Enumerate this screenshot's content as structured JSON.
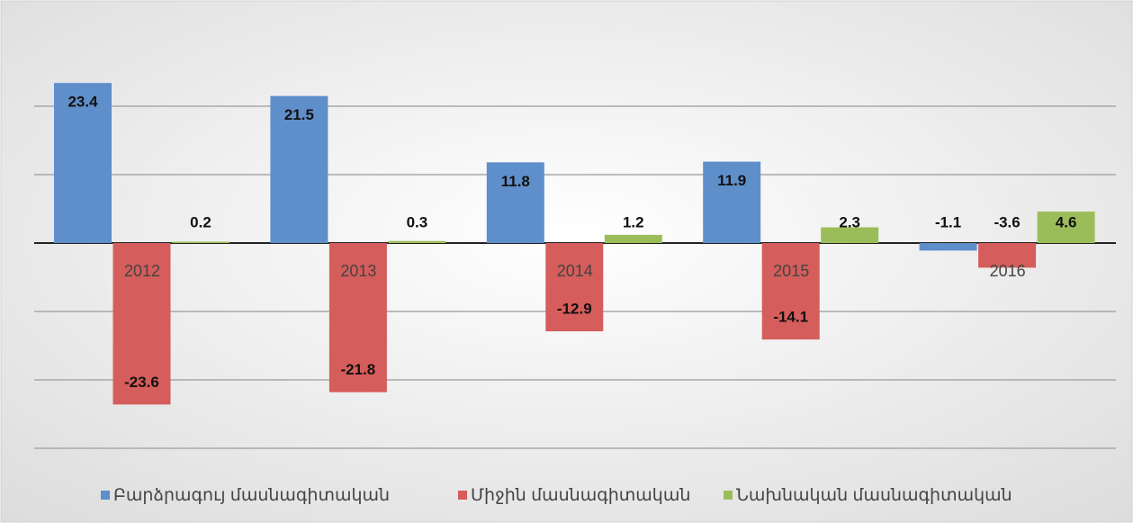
{
  "chart_data": {
    "type": "bar",
    "categories": [
      "2012",
      "2013",
      "2014",
      "2015",
      "2016"
    ],
    "series": [
      {
        "name": "Բարձրագույ մասնագիտական",
        "color": "#5f8fcb",
        "values": [
          23.4,
          21.5,
          11.8,
          11.9,
          -1.1
        ]
      },
      {
        "name": "Միջին մասնագիտական",
        "color": "#d55d5b",
        "values": [
          -23.6,
          -21.8,
          -12.9,
          -14.1,
          -3.6
        ]
      },
      {
        "name": "Նախնական մասնագիտական",
        "color": "#9bbd59",
        "values": [
          0.2,
          0.3,
          1.2,
          2.3,
          4.6
        ]
      }
    ],
    "ylim": [
      -30,
      30
    ],
    "yticks": [
      -30,
      -20,
      -10,
      0,
      10,
      20
    ],
    "grid": true,
    "legend": "bottom"
  }
}
